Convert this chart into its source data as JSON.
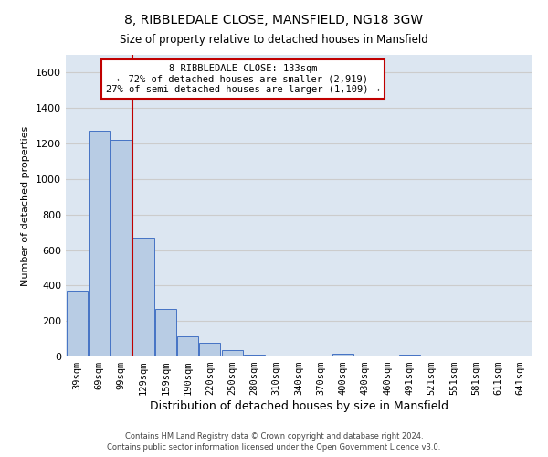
{
  "title": "8, RIBBLEDALE CLOSE, MANSFIELD, NG18 3GW",
  "subtitle": "Size of property relative to detached houses in Mansfield",
  "xlabel": "Distribution of detached houses by size in Mansfield",
  "ylabel": "Number of detached properties",
  "bar_labels": [
    "39sqm",
    "69sqm",
    "99sqm",
    "129sqm",
    "159sqm",
    "190sqm",
    "220sqm",
    "250sqm",
    "280sqm",
    "310sqm",
    "340sqm",
    "370sqm",
    "400sqm",
    "430sqm",
    "460sqm",
    "491sqm",
    "521sqm",
    "551sqm",
    "581sqm",
    "611sqm",
    "641sqm"
  ],
  "bar_values": [
    370,
    1270,
    1220,
    670,
    270,
    115,
    75,
    35,
    10,
    0,
    0,
    0,
    15,
    0,
    0,
    12,
    0,
    0,
    0,
    0,
    0
  ],
  "bar_color": "#b8cce4",
  "bar_edge_color": "#4472c4",
  "property_line_color": "#c00000",
  "annotation_title": "8 RIBBLEDALE CLOSE: 133sqm",
  "annotation_line1": "← 72% of detached houses are smaller (2,919)",
  "annotation_line2": "27% of semi-detached houses are larger (1,109) →",
  "annotation_box_color": "#ffffff",
  "annotation_box_edge_color": "#c00000",
  "ylim": [
    0,
    1700
  ],
  "yticks": [
    0,
    200,
    400,
    600,
    800,
    1000,
    1200,
    1400,
    1600
  ],
  "footer_line1": "Contains HM Land Registry data © Crown copyright and database right 2024.",
  "footer_line2": "Contains public sector information licensed under the Open Government Licence v3.0.",
  "background_color": "#ffffff",
  "grid_color": "#cccccc",
  "plot_bg_color": "#dce6f1"
}
